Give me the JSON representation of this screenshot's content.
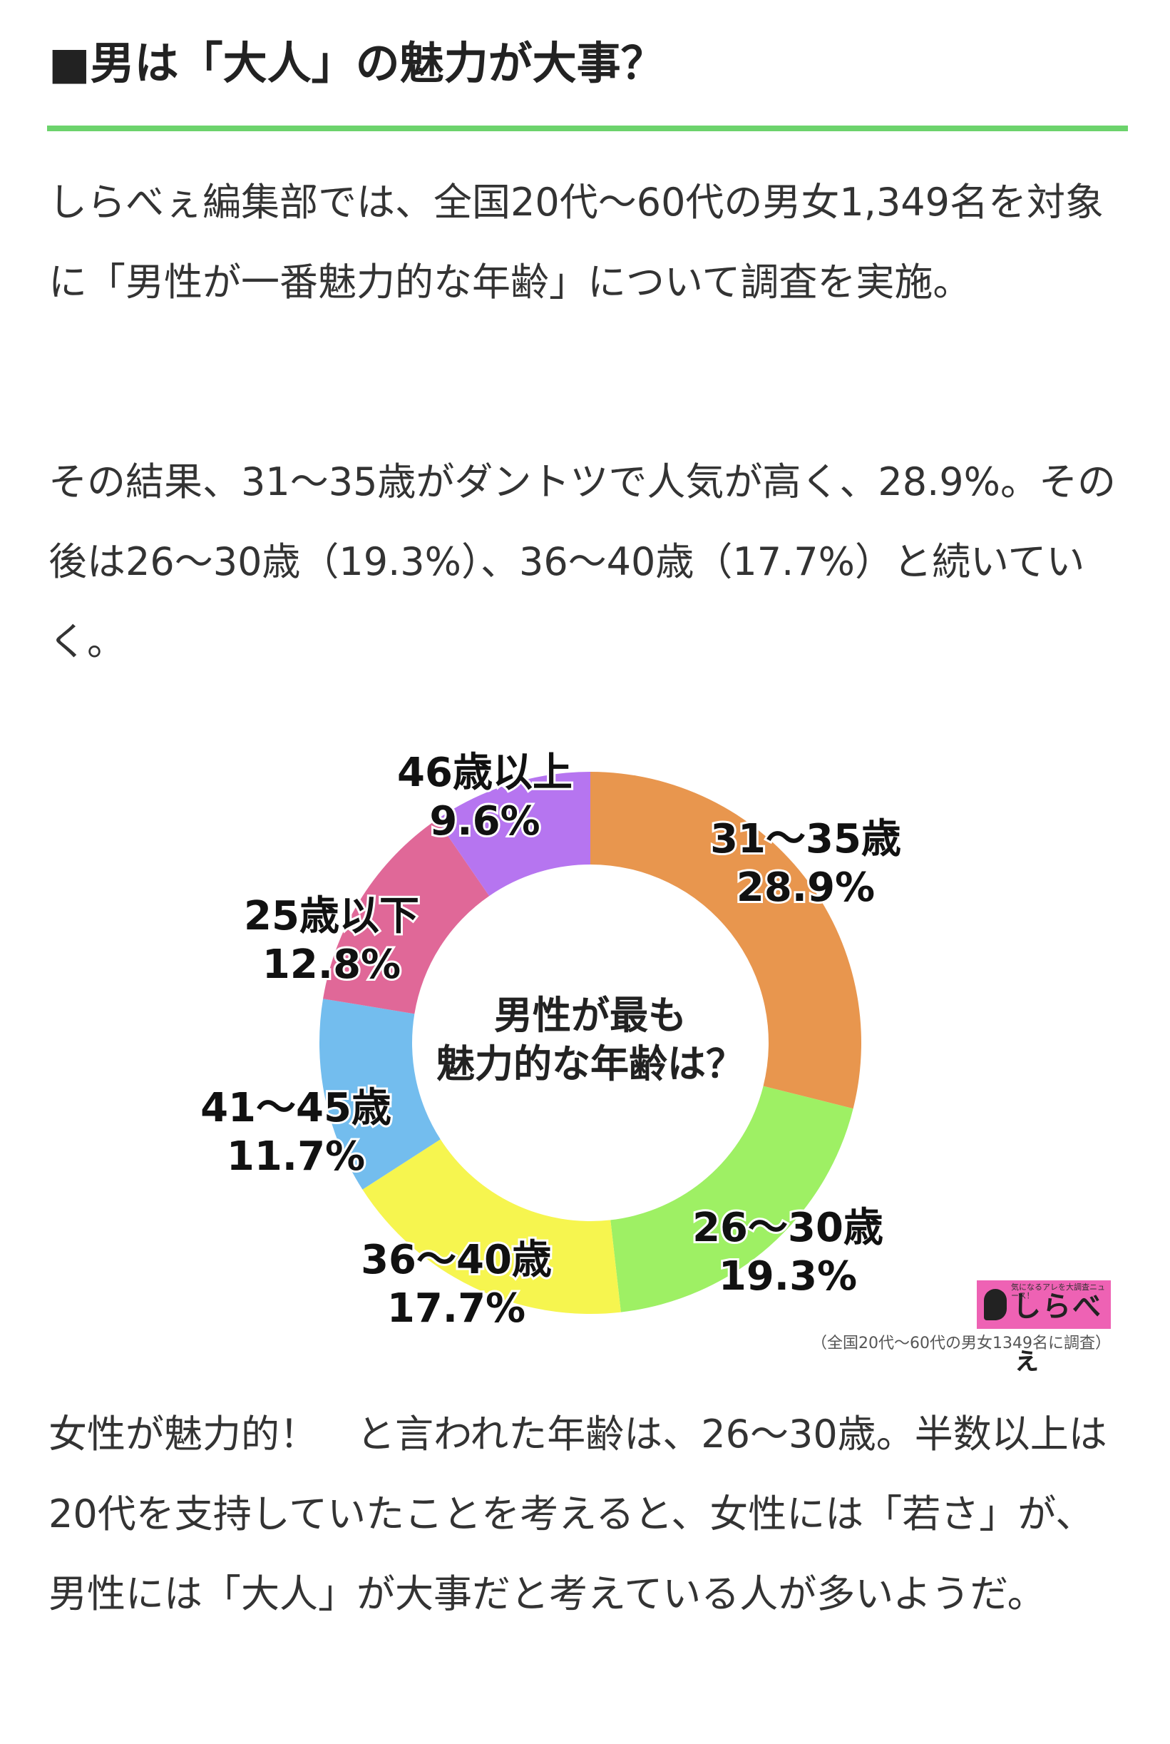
{
  "article": {
    "heading": "■男は「大人」の魅力が大事？",
    "paragraph1": "しらべぇ編集部では、全国20代〜60代の男女1,349名を対象に「男性が一番魅力的な年齢」について調査を実施。",
    "paragraph2": "その結果、31〜35歳がダントツで人気が高く、28.9%。その後は26〜30歳（19.3%）、36〜40歳（17.7%）と続いていく。",
    "paragraph3": "女性が魅力的！　と言われた年齢は、26〜30歳。半数以上は20代を支持していたことを考えると、女性には「若さ」が、男性には「大人」が大事だと考えている人が多いようだ。",
    "logo_text": "しらべぇ",
    "logo_tagline": "気になるアレを大調査ニュース！",
    "survey_note": "（全国20代〜60代の男女1349名に調査）"
  },
  "colors": {
    "rule": "#6cd36c",
    "logo_bg": "#ee62b4"
  },
  "chart_data": {
    "type": "pie",
    "center_label": [
      "男性が最も",
      "魅力的な年齢は？"
    ],
    "slices": [
      {
        "label": "31〜35歳",
        "value": 28.9,
        "value_label": "28.9%",
        "color": "#e8964e"
      },
      {
        "label": "26〜30歳",
        "value": 19.3,
        "value_label": "19.3%",
        "color": "#9ef064"
      },
      {
        "label": "36〜40歳",
        "value": 17.7,
        "value_label": "17.7%",
        "color": "#f6f54f"
      },
      {
        "label": "41〜45歳",
        "value": 11.7,
        "value_label": "11.7%",
        "color": "#73bdee"
      },
      {
        "label": "25歳以下",
        "value": 12.8,
        "value_label": "12.8%",
        "color": "#e06898"
      },
      {
        "label": "46歳以上",
        "value": 9.6,
        "value_label": "9.6%",
        "color": "#b675f0"
      }
    ]
  }
}
